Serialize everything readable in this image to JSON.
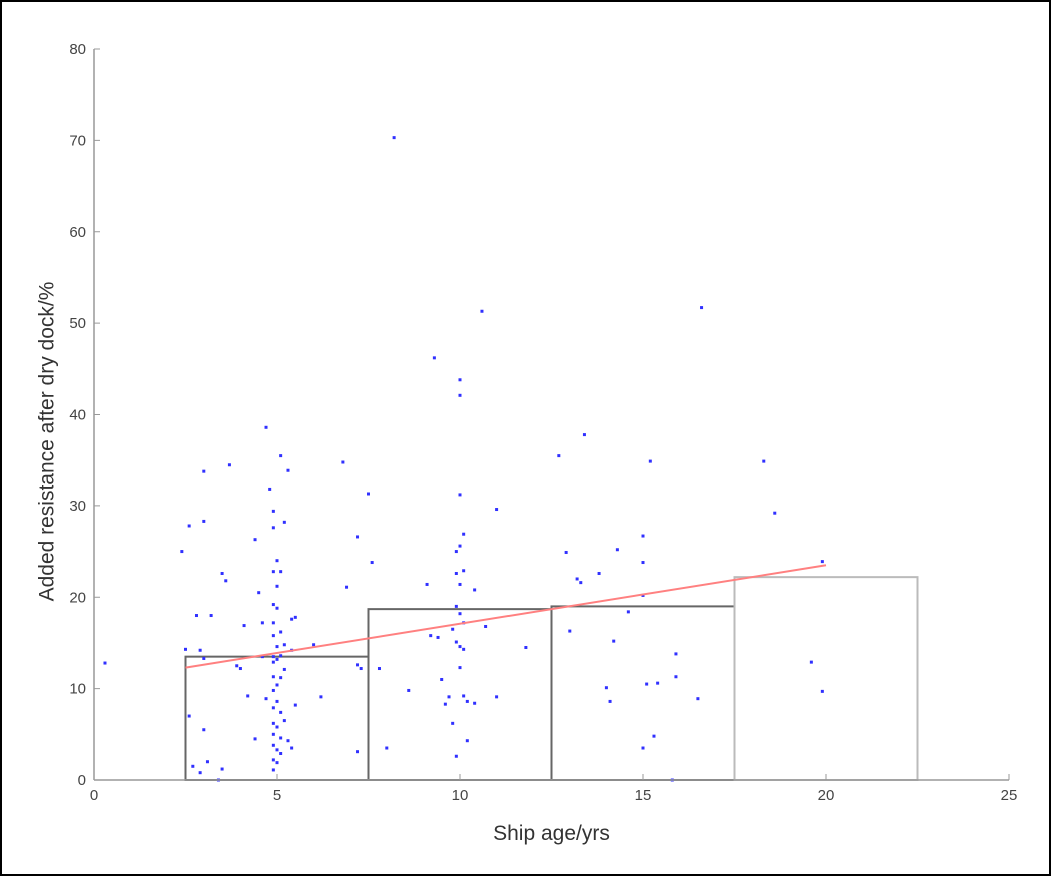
{
  "chart_data": {
    "type": "scatter",
    "xlabel": "Ship age/yrs",
    "ylabel": "Added resistance after dry dock/%",
    "xlim": [
      0,
      25
    ],
    "ylim": [
      0,
      80
    ],
    "x_ticks": [
      "0",
      "5",
      "10",
      "15",
      "20",
      "25"
    ],
    "y_ticks": [
      "0",
      "10",
      "20",
      "30",
      "40",
      "50",
      "60",
      "70",
      "80"
    ],
    "grid": false,
    "legend": "none",
    "colors": {
      "points": "#3030ff",
      "trend": "#ff8080",
      "bins_dark": "#666666",
      "bins_light": "#bbbbbb",
      "axis": "#999999"
    },
    "points": [
      [
        0.3,
        12.8
      ],
      [
        2.4,
        25
      ],
      [
        2.5,
        14.3
      ],
      [
        2.6,
        27.8
      ],
      [
        2.6,
        7
      ],
      [
        2.7,
        1.5
      ],
      [
        2.8,
        18
      ],
      [
        2.9,
        14.2
      ],
      [
        3.0,
        33.8
      ],
      [
        3.0,
        28.3
      ],
      [
        3.0,
        13.3
      ],
      [
        3.0,
        5.5
      ],
      [
        3.1,
        2
      ],
      [
        2.9,
        0.8
      ],
      [
        3.2,
        18
      ],
      [
        3.4,
        0
      ],
      [
        3.5,
        22.6
      ],
      [
        3.5,
        1.2
      ],
      [
        3.6,
        21.8
      ],
      [
        3.7,
        34.5
      ],
      [
        3.9,
        12.5
      ],
      [
        4.0,
        12.2
      ],
      [
        4.1,
        16.9
      ],
      [
        4.2,
        9.2
      ],
      [
        4.4,
        26.3
      ],
      [
        4.4,
        4.5
      ],
      [
        4.5,
        20.5
      ],
      [
        4.6,
        13.5
      ],
      [
        4.6,
        17.2
      ],
      [
        4.7,
        38.6
      ],
      [
        4.7,
        8.9
      ],
      [
        4.8,
        31.8
      ],
      [
        4.9,
        29.4
      ],
      [
        4.9,
        27.6
      ],
      [
        4.9,
        22.8
      ],
      [
        4.9,
        19.2
      ],
      [
        4.9,
        17.2
      ],
      [
        4.9,
        15.8
      ],
      [
        4.9,
        13.5
      ],
      [
        4.9,
        12.9
      ],
      [
        4.9,
        11.3
      ],
      [
        4.9,
        9.8
      ],
      [
        4.9,
        7.9
      ],
      [
        4.9,
        6.2
      ],
      [
        4.9,
        5
      ],
      [
        4.9,
        3.8
      ],
      [
        4.9,
        2.2
      ],
      [
        4.9,
        1.1
      ],
      [
        5.0,
        24
      ],
      [
        5.0,
        21.2
      ],
      [
        5.0,
        18.8
      ],
      [
        5.0,
        14.6
      ],
      [
        5.0,
        13.2
      ],
      [
        5.0,
        10.4
      ],
      [
        5.0,
        8.6
      ],
      [
        5.0,
        5.8
      ],
      [
        5.0,
        3.3
      ],
      [
        5.0,
        1.9
      ],
      [
        5.1,
        35.5
      ],
      [
        5.1,
        22.8
      ],
      [
        5.1,
        16.2
      ],
      [
        5.1,
        13.6
      ],
      [
        5.1,
        11.2
      ],
      [
        5.1,
        7.4
      ],
      [
        5.1,
        4.6
      ],
      [
        5.1,
        2.9
      ],
      [
        5.2,
        28.2
      ],
      [
        5.2,
        14.8
      ],
      [
        5.2,
        12.1
      ],
      [
        5.2,
        6.5
      ],
      [
        5.3,
        33.9
      ],
      [
        5.3,
        4.3
      ],
      [
        5.4,
        17.6
      ],
      [
        5.4,
        14.2
      ],
      [
        5.4,
        3.5
      ],
      [
        5.5,
        17.8
      ],
      [
        5.5,
        8.2
      ],
      [
        6.0,
        14.8
      ],
      [
        6.2,
        9.1
      ],
      [
        6.8,
        34.8
      ],
      [
        6.9,
        21.1
      ],
      [
        7.2,
        26.6
      ],
      [
        7.2,
        12.6
      ],
      [
        7.2,
        3.1
      ],
      [
        7.3,
        12.2
      ],
      [
        7.5,
        31.3
      ],
      [
        7.6,
        23.8
      ],
      [
        7.8,
        12.2
      ],
      [
        8.0,
        3.5
      ],
      [
        8.2,
        70.3
      ],
      [
        8.6,
        9.8
      ],
      [
        9.1,
        21.4
      ],
      [
        9.2,
        15.8
      ],
      [
        9.3,
        46.2
      ],
      [
        9.4,
        15.6
      ],
      [
        9.5,
        11
      ],
      [
        9.6,
        8.3
      ],
      [
        9.7,
        9.1
      ],
      [
        9.8,
        6.2
      ],
      [
        9.8,
        16.5
      ],
      [
        9.9,
        25
      ],
      [
        9.9,
        22.6
      ],
      [
        9.9,
        19
      ],
      [
        9.9,
        15.1
      ],
      [
        9.9,
        2.6
      ],
      [
        10.0,
        43.8
      ],
      [
        10.0,
        42.1
      ],
      [
        10.0,
        31.2
      ],
      [
        10.0,
        25.6
      ],
      [
        10.0,
        21.4
      ],
      [
        10.0,
        18.2
      ],
      [
        10.0,
        14.6
      ],
      [
        10.0,
        12.3
      ],
      [
        10.1,
        26.9
      ],
      [
        10.1,
        22.9
      ],
      [
        10.1,
        17.2
      ],
      [
        10.1,
        14.3
      ],
      [
        10.1,
        9.2
      ],
      [
        10.2,
        8.6
      ],
      [
        10.2,
        4.3
      ],
      [
        10.4,
        20.8
      ],
      [
        10.4,
        8.4
      ],
      [
        10.6,
        51.3
      ],
      [
        10.7,
        16.8
      ],
      [
        11.0,
        29.6
      ],
      [
        11.0,
        9.1
      ],
      [
        11.8,
        14.5
      ],
      [
        12.7,
        35.5
      ],
      [
        12.9,
        24.9
      ],
      [
        13.0,
        16.3
      ],
      [
        13.2,
        22
      ],
      [
        13.3,
        21.6
      ],
      [
        13.4,
        37.8
      ],
      [
        13.8,
        22.6
      ],
      [
        14.0,
        10.1
      ],
      [
        14.1,
        8.6
      ],
      [
        14.2,
        15.2
      ],
      [
        14.3,
        25.2
      ],
      [
        14.6,
        18.4
      ],
      [
        15.0,
        23.8
      ],
      [
        15.0,
        26.7
      ],
      [
        15.0,
        20.2
      ],
      [
        15.0,
        3.5
      ],
      [
        15.1,
        10.5
      ],
      [
        15.2,
        34.9
      ],
      [
        15.3,
        4.8
      ],
      [
        15.4,
        10.6
      ],
      [
        15.8,
        0
      ],
      [
        15.9,
        13.8
      ],
      [
        15.9,
        11.3
      ],
      [
        16.5,
        8.9
      ],
      [
        16.6,
        51.7
      ],
      [
        18.3,
        34.9
      ],
      [
        18.6,
        29.2
      ],
      [
        19.6,
        12.9
      ],
      [
        19.9,
        23.9
      ],
      [
        19.9,
        9.7
      ]
    ],
    "trend_line": {
      "x": [
        2.5,
        20.0
      ],
      "y": [
        12.3,
        23.5
      ]
    },
    "bins": [
      {
        "x0": 2.5,
        "x1": 7.5,
        "height": 13.5,
        "tone": "dark"
      },
      {
        "x0": 7.5,
        "x1": 12.5,
        "height": 18.7,
        "tone": "dark"
      },
      {
        "x0": 12.5,
        "x1": 17.5,
        "height": 19.0,
        "tone": "dark"
      },
      {
        "x0": 17.5,
        "x1": 22.5,
        "height": 22.2,
        "tone": "light"
      }
    ]
  }
}
